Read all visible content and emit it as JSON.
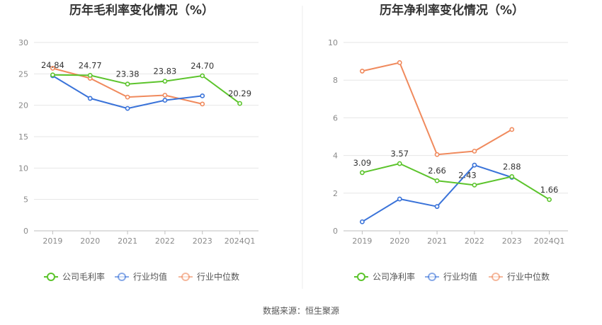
{
  "source": "数据来源：恒生聚源",
  "colors": {
    "company": "#5cc42c",
    "industry_avg": "#3a73d9",
    "industry_median": "#f08a5d",
    "grid": "#e6e6e6",
    "axis": "#bfbfbf"
  },
  "chart_data": [
    {
      "type": "line",
      "title": "历年毛利率变化情况（%）",
      "categories": [
        "2019",
        "2020",
        "2021",
        "2022",
        "2023",
        "2024Q1"
      ],
      "ylim": [
        0,
        30
      ],
      "yticks": [
        0,
        5,
        10,
        15,
        20,
        25,
        30
      ],
      "ytick_labels": [
        "0",
        "5",
        "10",
        "15",
        "20",
        "25",
        "30"
      ],
      "grid": true,
      "legend_position": "bottom",
      "series": [
        {
          "key": "company",
          "name": "公司毛利率",
          "values": [
            24.84,
            24.77,
            23.38,
            23.83,
            24.7,
            20.29
          ],
          "labels": [
            "24.84",
            "24.77",
            "23.38",
            "23.83",
            "24.70",
            "20.29"
          ]
        },
        {
          "key": "industry_avg",
          "name": "行业均值",
          "values": [
            24.7,
            21.1,
            19.5,
            20.8,
            21.5,
            null
          ]
        },
        {
          "key": "industry_median",
          "name": "行业中位数",
          "values": [
            25.9,
            24.3,
            21.3,
            21.6,
            20.2,
            null
          ]
        }
      ]
    },
    {
      "type": "line",
      "title": "历年净利率变化情况（%）",
      "categories": [
        "2019",
        "2020",
        "2021",
        "2022",
        "2023",
        "2024Q1"
      ],
      "ylim": [
        0,
        10
      ],
      "yticks": [
        0,
        2,
        4,
        6,
        8,
        10
      ],
      "ytick_labels": [
        "0",
        "2",
        "4",
        "6",
        "8",
        "10"
      ],
      "grid": true,
      "legend_position": "bottom",
      "series": [
        {
          "key": "company",
          "name": "公司净利率",
          "values": [
            3.09,
            3.57,
            2.66,
            2.43,
            2.88,
            1.66
          ],
          "labels": [
            "3.09",
            "3.57",
            "2.66",
            "2.43",
            "2.88",
            "1.66"
          ]
        },
        {
          "key": "industry_avg",
          "name": "行业均值",
          "values": [
            0.48,
            1.69,
            1.29,
            3.49,
            2.84,
            null
          ]
        },
        {
          "key": "industry_median",
          "name": "行业中位数",
          "values": [
            8.48,
            8.93,
            4.05,
            4.23,
            5.38,
            null
          ]
        }
      ]
    }
  ]
}
